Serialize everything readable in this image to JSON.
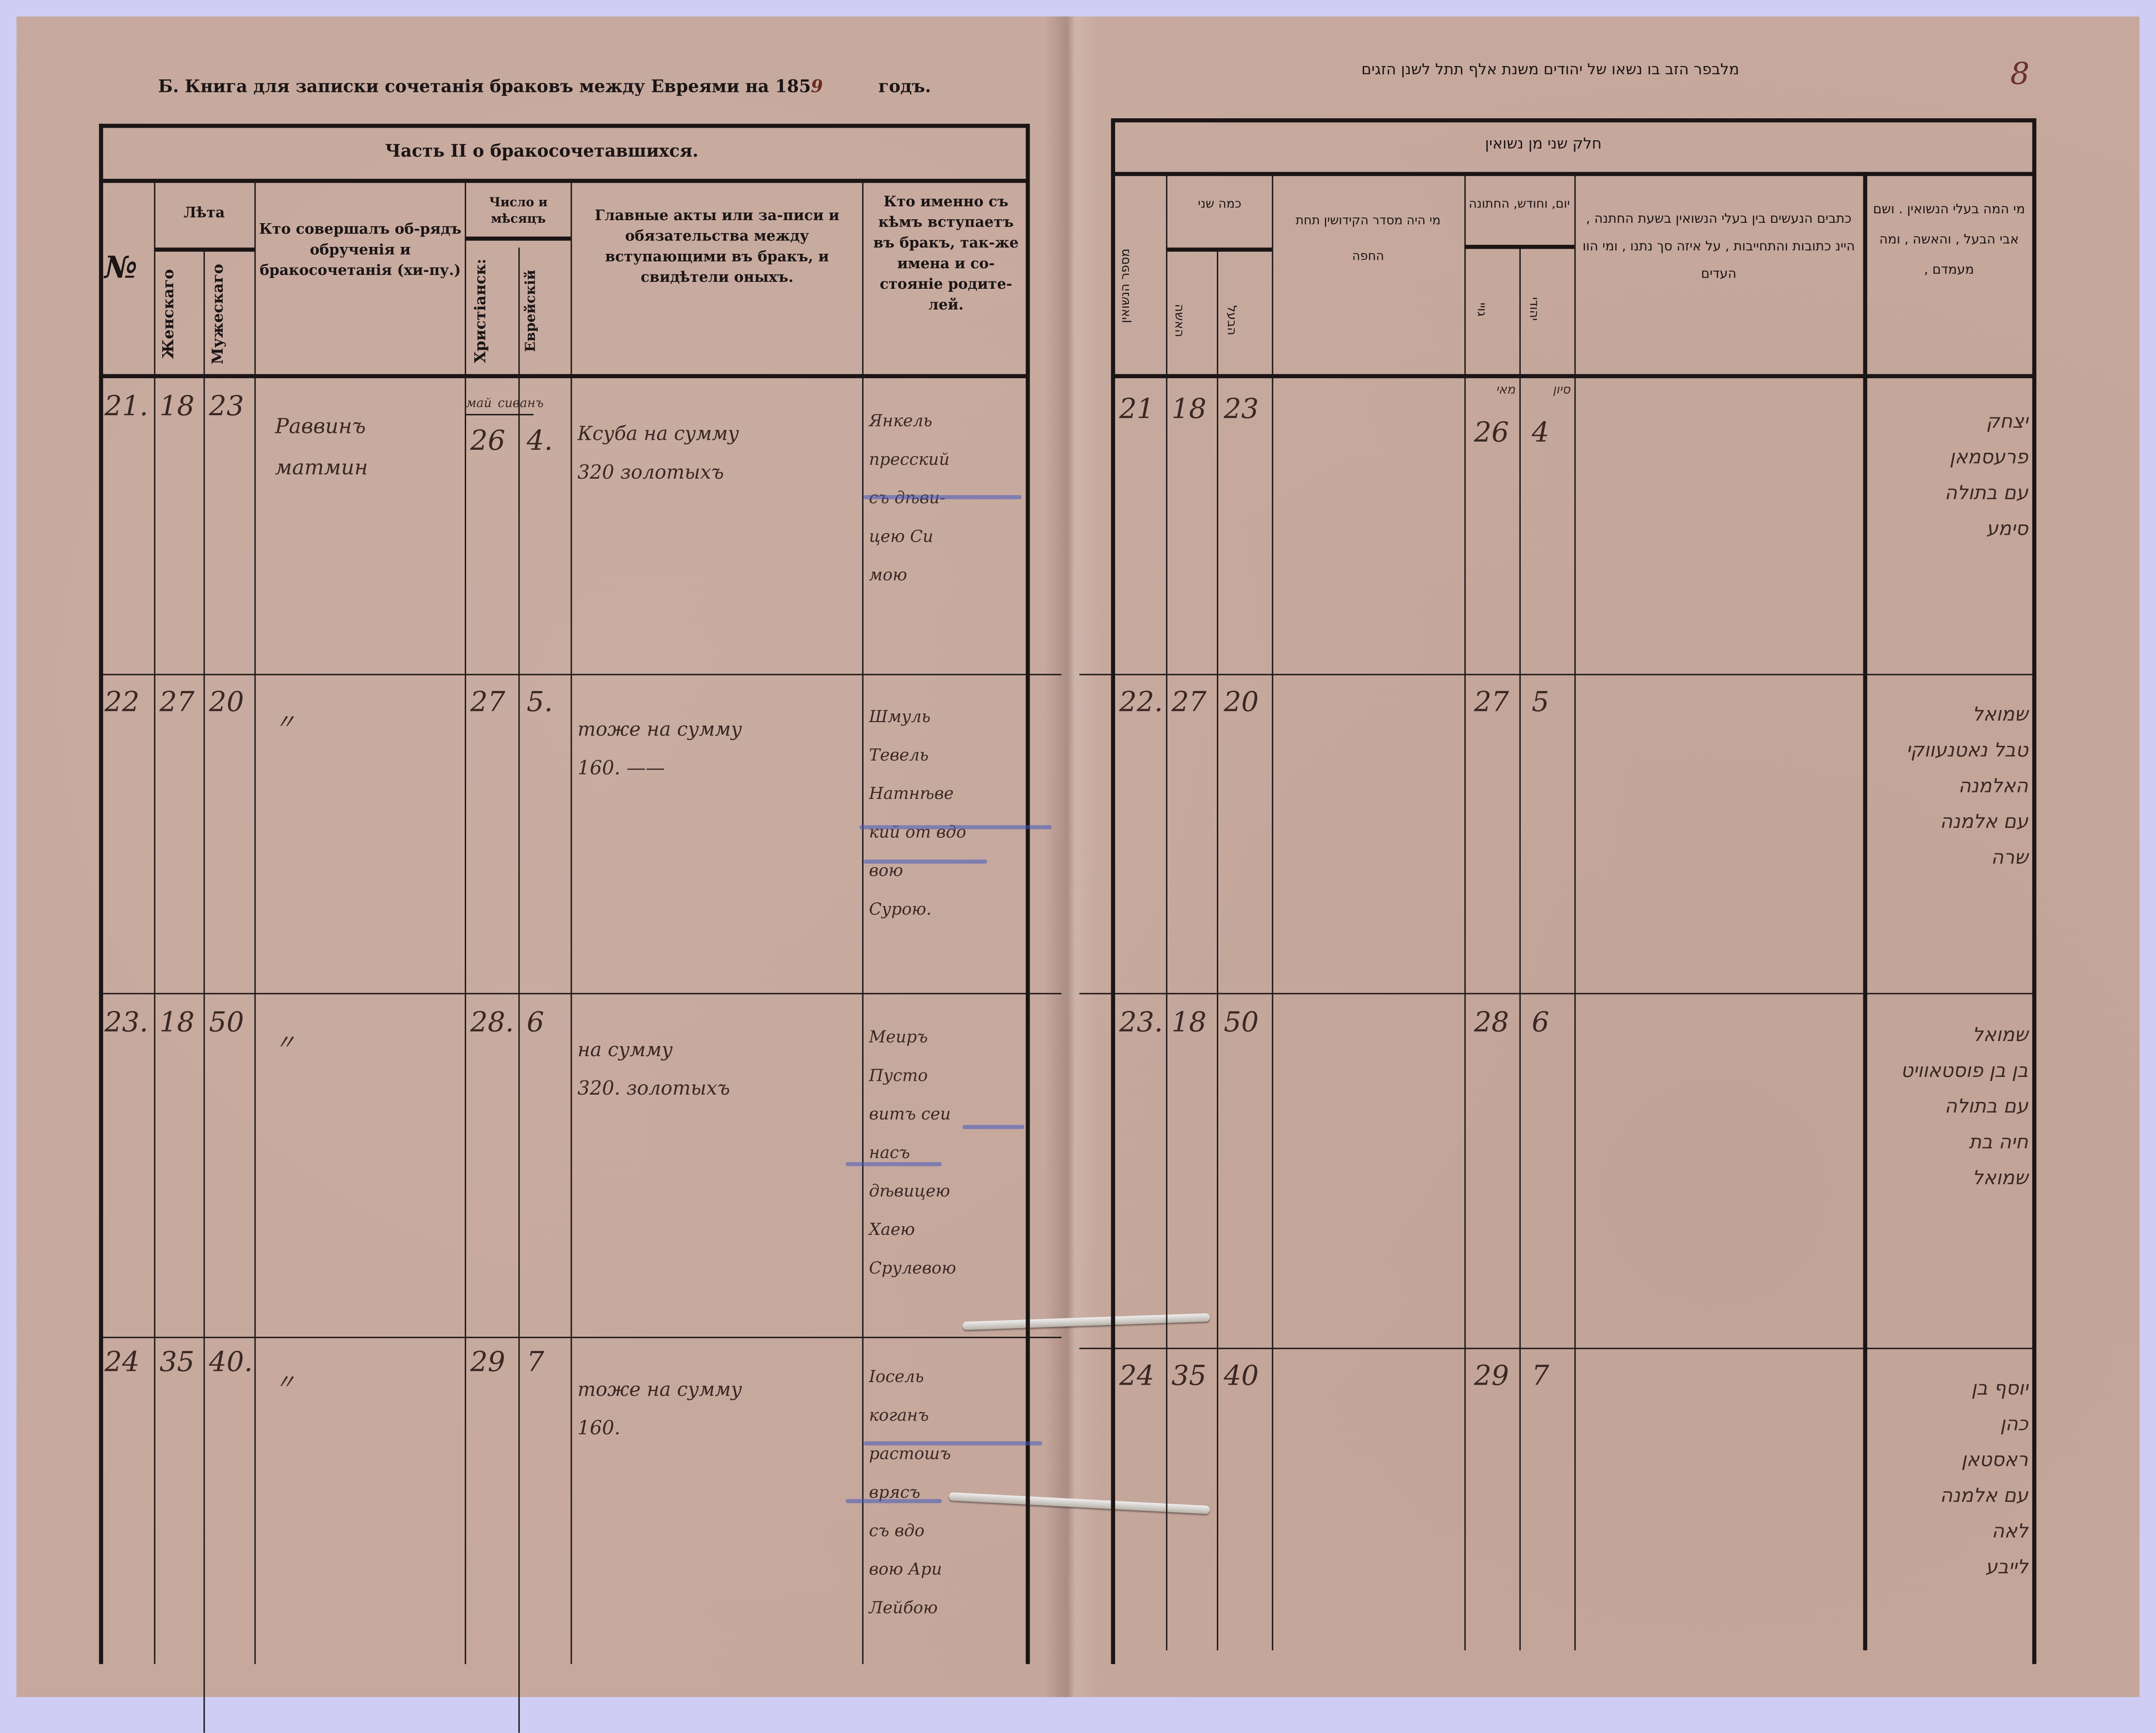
{
  "left_page": {
    "book_title": "Б. Книга для записки сочетанія браковъ между Евреями на 185",
    "year_digit": "9",
    "year_suffix": "годъ.",
    "part_title": "Часть II о бракосочетавшихся.",
    "headers": {
      "number": "№",
      "ages": "Лѣта",
      "female": "Женскаго",
      "male": "Мужескаго",
      "officiant": "Кто совершалъ об-рядъ обрученія и бракосочетанія (хи-пу.)",
      "date": "Число и мѣсяцъ",
      "christian": "Христіанск:",
      "jewish": "Еврейскій",
      "acts": "Главные акты или за-писи и обязательства между вступающими въ бракъ, и свидѣтели оныхъ.",
      "who": "Кто именно съ кѣмъ вступаетъ въ бракъ, так-же имена и со-стояніе родите-лей."
    },
    "month_labels": {
      "christian": "май",
      "jewish": "сиванъ"
    },
    "rows": [
      {
        "no": "21.",
        "female": "18",
        "male": "23",
        "officiant": "Раввинъ\nматмин",
        "christian": "26",
        "jewish": "4.",
        "acts": "Ксуба на сумму\n320 золотыхъ",
        "who": "Янкель\nпресский\nсъ дѣви-\nцею Си\nмою"
      },
      {
        "no": "22",
        "female": "27",
        "male": "20",
        "officiant": "〃",
        "christian": "27",
        "jewish": "5.",
        "acts": "тоже на сумму\n160. ——",
        "who": "Шмуль\nТевель\nНатнѣве\nкий от вдо\nвою\nСурою."
      },
      {
        "no": "23.",
        "female": "18",
        "male": "50",
        "officiant": "〃",
        "christian": "28.",
        "jewish": "6",
        "acts": "на сумму\n320. золотыхъ",
        "who": "Меиръ\nПусто\nвитъ сеи\nнасъ\nдѣвицею\nХаею\nСрулевою"
      },
      {
        "no": "24",
        "female": "35",
        "male": "40.",
        "officiant": "〃",
        "christian": "29",
        "jewish": "7",
        "acts": "тоже на сумму\n160.",
        "who": "Іосель\nкоганъ\nрастошъ\nврясъ\nсъ вдо\nвою Ари\nЛейбою"
      }
    ]
  },
  "right_page": {
    "book_title": "מלבפר הזב בו נשאו של יהודים משנת אלף תתל לשנן הזגים",
    "page_number": "8",
    "part_title": "חלק שני מן נשואין",
    "headers": {
      "number": "מספר הנשואין",
      "ages": "כמה שני",
      "wife": "האשה",
      "husband": "הבעל",
      "officiant": "מי היה מסדר הקידושין תחת החפה",
      "date": "יום, וחודש, החתונה",
      "goyi": "גויי",
      "jewish": "יהודי",
      "documents": "כתבים הנעשים בין בעלי הנשואין בשעת החתנה , היינ כתובות והתחייבות , על איזה סך נתנו , ומי הוו העדים",
      "who": "מי המה בעלי הנשואין . ושם אבי הבעל , והאשה , ומה מעמדם ,"
    },
    "month_labels": {
      "goyi": "מאי",
      "jewish": "סיון"
    },
    "rows": [
      {
        "no": "21",
        "wife": "18",
        "husband": "23",
        "goyi": "26",
        "jewish": "4",
        "who": "יצחק\nפרעסמאן\nעם בתולה\nסימע"
      },
      {
        "no": "22.",
        "wife": "27",
        "husband": "20",
        "goyi": "27",
        "jewish": "5",
        "who": "שמואל\nטבל נאטנעווקי\nהאלמנה\nעם אלמנה\nשרה"
      },
      {
        "no": "23.",
        "wife": "18",
        "husband": "50",
        "goyi": "28",
        "jewish": "6",
        "who": "שמואל\nבן בן פוסטאוויט\nעם בתולה\nחיה בת\nשמואל"
      },
      {
        "no": "24",
        "wife": "35",
        "husband": "40",
        "goyi": "29",
        "jewish": "7",
        "who": "יוסף בן\nכהן\nראסטאן\nעם אלמנה\nלאה\nלייבע"
      }
    ]
  },
  "colors": {
    "paper": "#c6a89c",
    "ink": "#1b1515",
    "handwriting": "#3a2824",
    "frame": "#cfcdf3",
    "blue_pencil": "#4a5ebe"
  }
}
